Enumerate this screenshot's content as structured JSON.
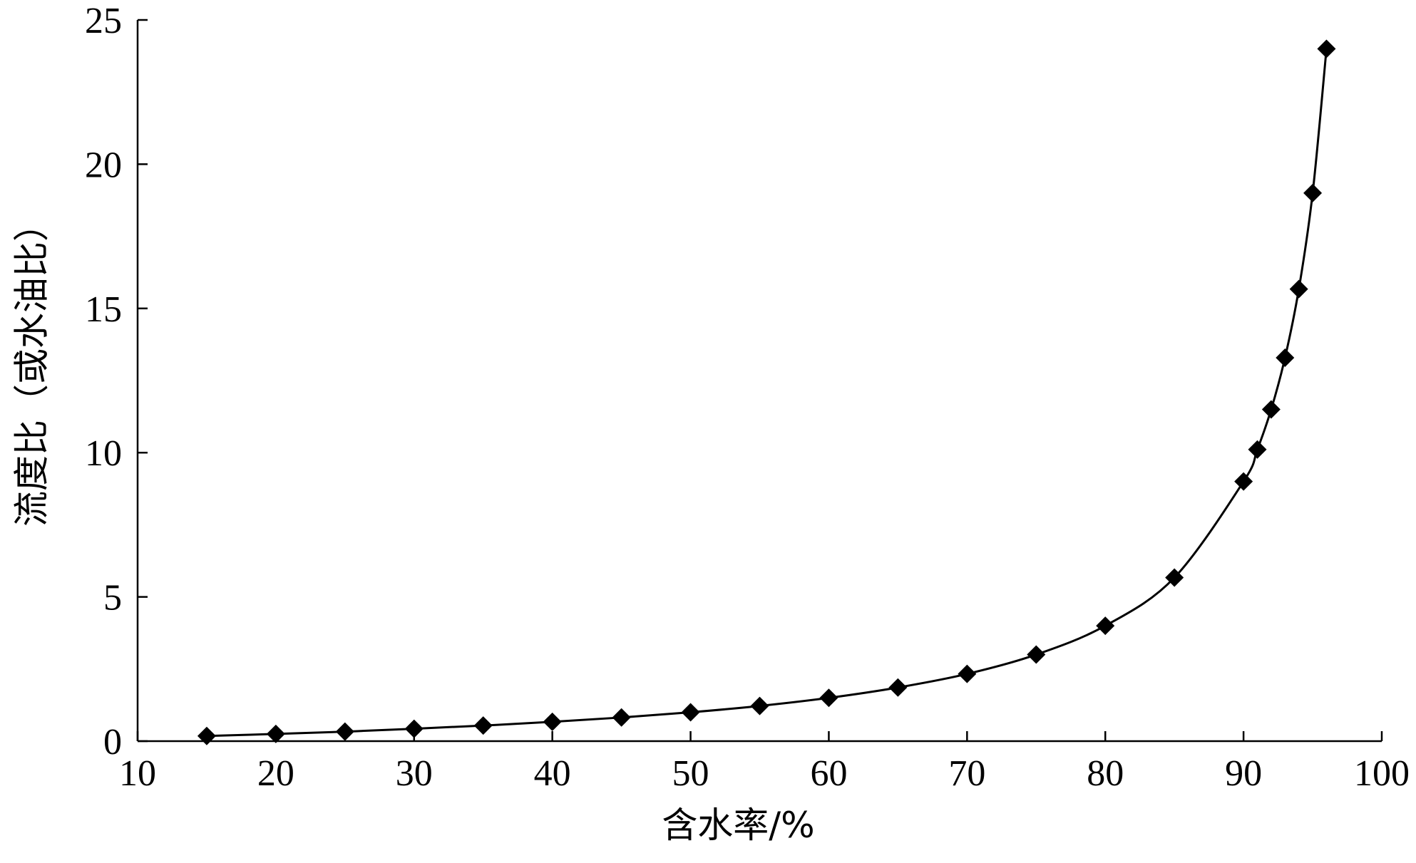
{
  "chart_data": {
    "type": "line",
    "title": "",
    "xlabel": "含水率/%",
    "ylabel": "流度比（或水油比）",
    "xlim": [
      10,
      100
    ],
    "ylim": [
      0,
      25
    ],
    "x_ticks": [
      10,
      20,
      30,
      40,
      50,
      60,
      70,
      80,
      90,
      100
    ],
    "y_ticks": [
      0,
      5,
      10,
      15,
      20,
      25
    ],
    "x_tick_labels": [
      "10",
      "20",
      "30",
      "40",
      "50",
      "60",
      "70",
      "80",
      "90",
      "100"
    ],
    "y_tick_labels": [
      "0",
      "5",
      "10",
      "15",
      "20",
      "25"
    ],
    "grid": false,
    "legend": "none",
    "marker": "diamond",
    "colors": {
      "line": "#000000",
      "marker": "#000000",
      "axis": "#000000",
      "background": "#ffffff"
    },
    "series": [
      {
        "x": [
          15,
          20,
          25,
          30,
          35,
          40,
          45,
          50,
          55,
          60,
          65,
          70,
          75,
          80,
          85,
          90,
          91,
          92,
          93,
          94,
          95,
          96
        ],
        "values": [
          0.18,
          0.25,
          0.33,
          0.43,
          0.54,
          0.67,
          0.82,
          1.0,
          1.22,
          1.5,
          1.86,
          2.33,
          3.0,
          4.0,
          5.67,
          9.0,
          10.11,
          11.5,
          13.29,
          15.67,
          19.0,
          24.0
        ]
      }
    ]
  }
}
